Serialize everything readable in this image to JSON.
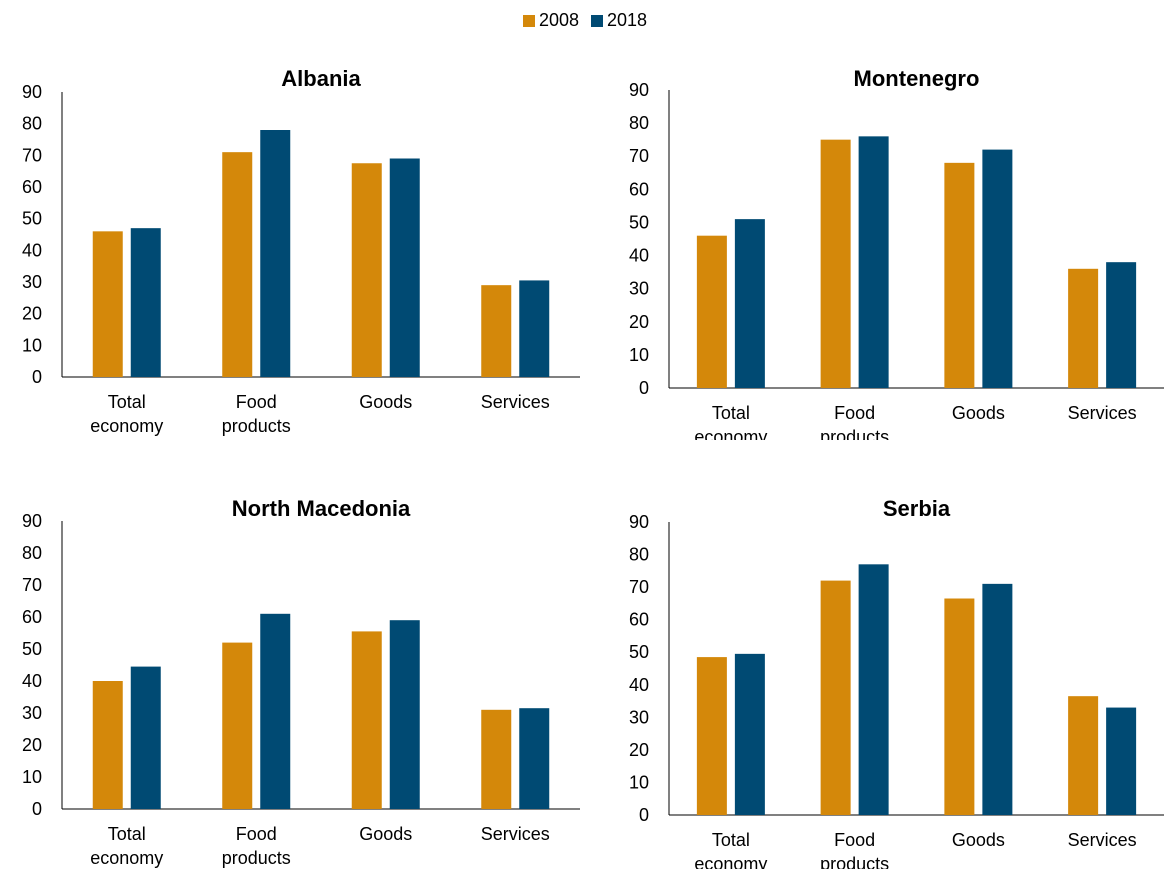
{
  "colors": {
    "series_2008": "#D4880A",
    "series_2018": "#004A73",
    "axis": "#000000"
  },
  "legend": {
    "items": [
      "2008",
      "2018"
    ]
  },
  "chart_data": [
    {
      "type": "bar",
      "title": "Albania",
      "categories": [
        "Total economy",
        "Food products",
        "Goods",
        "Services"
      ],
      "series": [
        {
          "name": "2008",
          "values": [
            46,
            71,
            67.5,
            29
          ]
        },
        {
          "name": "2018",
          "values": [
            47,
            78,
            69,
            30.5
          ]
        }
      ],
      "yticks": [
        "0",
        "10",
        "20",
        "30",
        "40",
        "50",
        "60",
        "70",
        "80",
        "90"
      ],
      "ylim": [
        0,
        90
      ],
      "xlabel": "",
      "ylabel": "",
      "grid": false,
      "legend": "top-center"
    },
    {
      "type": "bar",
      "title": "Montenegro",
      "categories": [
        "Total economy",
        "Food products",
        "Goods",
        "Services"
      ],
      "series": [
        {
          "name": "2008",
          "values": [
            46,
            75,
            68,
            36
          ]
        },
        {
          "name": "2018",
          "values": [
            51,
            76,
            72,
            38
          ]
        }
      ],
      "yticks": [
        "0",
        "10",
        "20",
        "30",
        "40",
        "50",
        "60",
        "70",
        "80",
        "90"
      ],
      "ylim": [
        0,
        90
      ],
      "xlabel": "",
      "ylabel": "",
      "grid": false,
      "legend": "top-center"
    },
    {
      "type": "bar",
      "title": "North Macedonia",
      "categories": [
        "Total economy",
        "Food products",
        "Goods",
        "Services"
      ],
      "series": [
        {
          "name": "2008",
          "values": [
            40,
            52,
            55.5,
            31
          ]
        },
        {
          "name": "2018",
          "values": [
            44.5,
            61,
            59,
            31.5
          ]
        }
      ],
      "yticks": [
        "0",
        "10",
        "20",
        "30",
        "40",
        "50",
        "60",
        "70",
        "80",
        "90"
      ],
      "ylim": [
        0,
        90
      ],
      "xlabel": "",
      "ylabel": "",
      "grid": false,
      "legend": "top-center"
    },
    {
      "type": "bar",
      "title": "Serbia",
      "categories": [
        "Total economy",
        "Food products",
        "Goods",
        "Services"
      ],
      "series": [
        {
          "name": "2008",
          "values": [
            48.5,
            72,
            66.5,
            36.5
          ]
        },
        {
          "name": "2018",
          "values": [
            49.5,
            77,
            71,
            33
          ]
        }
      ],
      "yticks": [
        "0",
        "10",
        "20",
        "30",
        "40",
        "50",
        "60",
        "70",
        "80",
        "90"
      ],
      "ylim": [
        0,
        90
      ],
      "xlabel": "",
      "ylabel": "",
      "grid": false,
      "legend": "top-center"
    }
  ]
}
